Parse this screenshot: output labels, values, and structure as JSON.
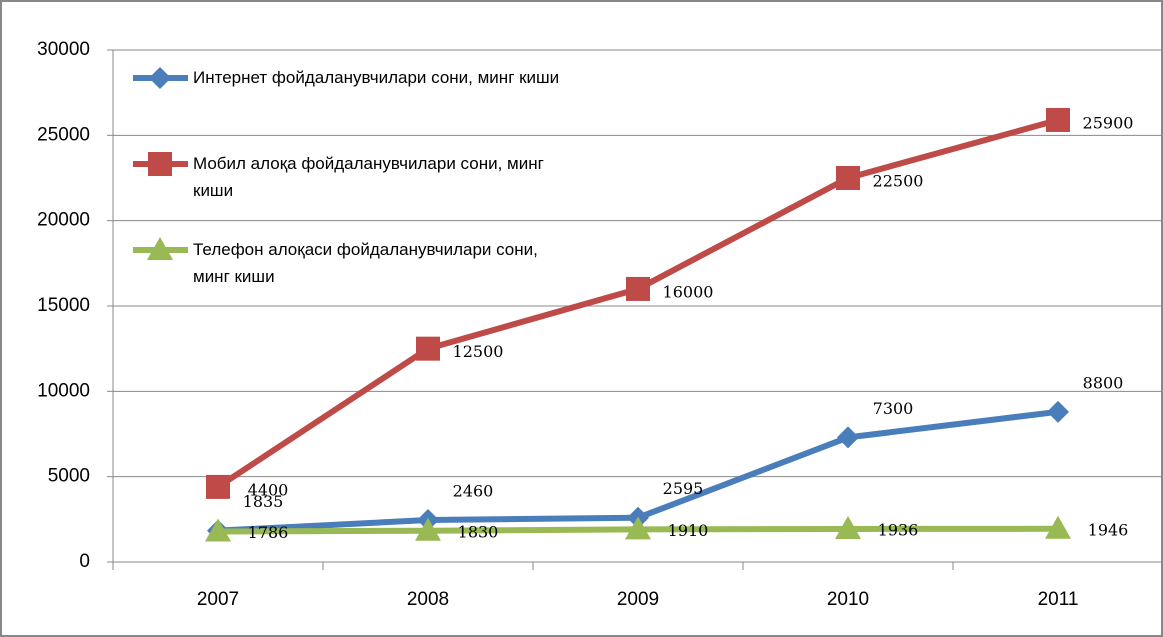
{
  "chart_data": {
    "type": "line",
    "categories": [
      "2007",
      "2008",
      "2009",
      "2010",
      "2011"
    ],
    "series": [
      {
        "name": "Интернет фойдаланувчилари сони, минг киши",
        "color": "#4a7ebb",
        "marker": "diamond",
        "values": [
          1835,
          2460,
          2595,
          7300,
          8800
        ]
      },
      {
        "name": "Мобил алоқа фойдаланувчилари сони, минг киши",
        "color": "#be4b48",
        "marker": "square",
        "values": [
          4400,
          12500,
          16000,
          22500,
          25900
        ]
      },
      {
        "name": "Телефон алоқаси фойдаланувчилари сони, минг киши",
        "color": "#98b954",
        "marker": "triangle",
        "values": [
          1786,
          1830,
          1910,
          1936,
          1946
        ]
      }
    ],
    "ylim": [
      0,
      30000
    ],
    "yticks": [
      0,
      5000,
      10000,
      15000,
      20000,
      25000,
      30000
    ],
    "grid": true,
    "legend": "top-left"
  }
}
